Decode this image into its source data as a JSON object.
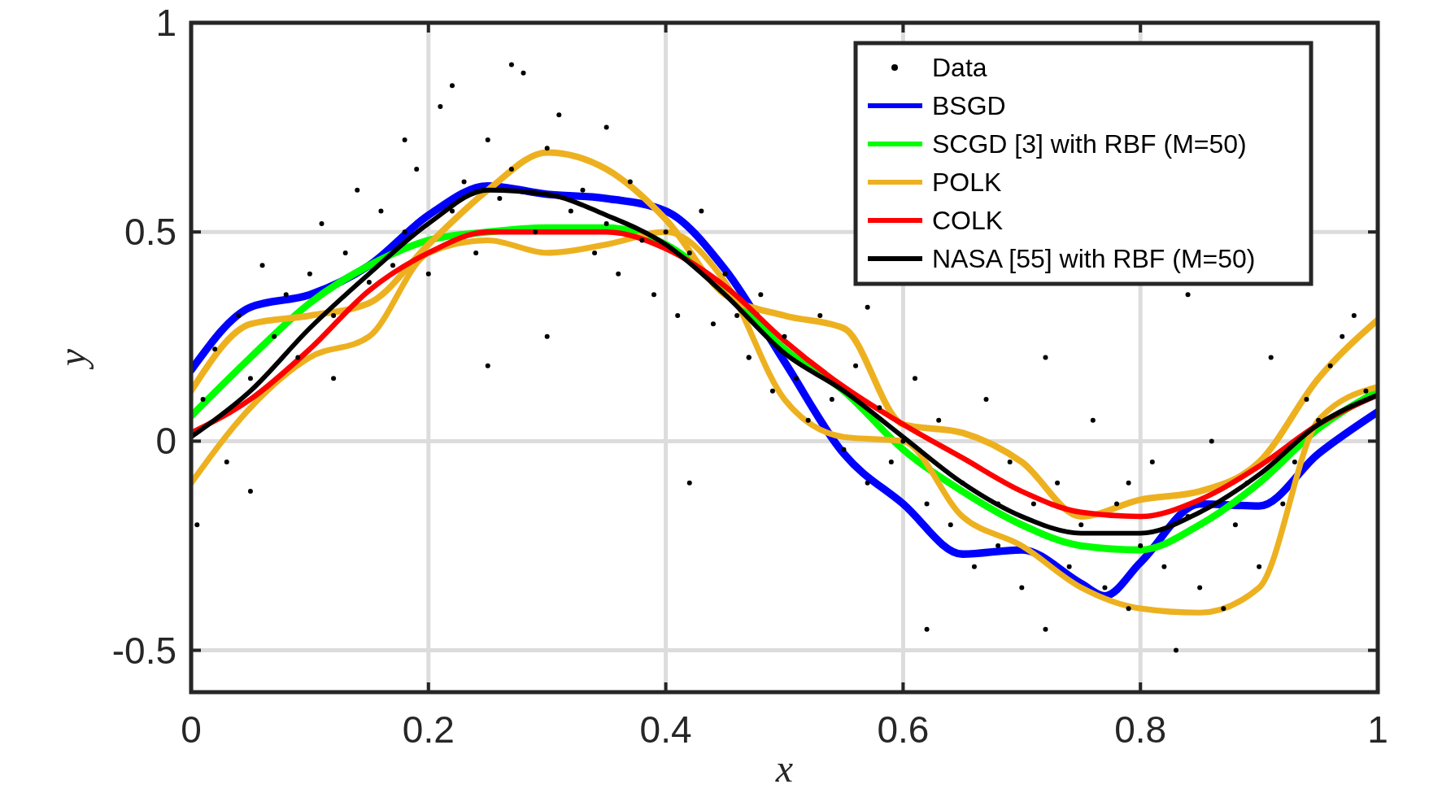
{
  "chart_data": {
    "type": "line",
    "xlabel": "x",
    "ylabel": "y",
    "xlim": [
      0,
      1
    ],
    "ylim": [
      -0.6,
      1
    ],
    "xticks": [
      0,
      0.2,
      0.4,
      0.6,
      0.8,
      1
    ],
    "yticks": [
      -0.5,
      0,
      0.5,
      1
    ],
    "grid": true,
    "legend": "top right",
    "series": [
      {
        "name": "Data",
        "type": "scatter",
        "color": "#000000",
        "x": [
          0.005,
          0.01,
          0.02,
          0.03,
          0.04,
          0.05,
          0.06,
          0.07,
          0.08,
          0.09,
          0.1,
          0.11,
          0.12,
          0.13,
          0.14,
          0.15,
          0.16,
          0.17,
          0.18,
          0.19,
          0.2,
          0.21,
          0.22,
          0.23,
          0.24,
          0.25,
          0.26,
          0.27,
          0.28,
          0.29,
          0.3,
          0.31,
          0.32,
          0.33,
          0.34,
          0.35,
          0.36,
          0.37,
          0.38,
          0.39,
          0.4,
          0.41,
          0.42,
          0.43,
          0.44,
          0.45,
          0.46,
          0.47,
          0.48,
          0.49,
          0.5,
          0.51,
          0.52,
          0.53,
          0.54,
          0.55,
          0.56,
          0.57,
          0.58,
          0.59,
          0.6,
          0.61,
          0.62,
          0.63,
          0.64,
          0.65,
          0.66,
          0.67,
          0.68,
          0.69,
          0.7,
          0.71,
          0.72,
          0.73,
          0.74,
          0.75,
          0.76,
          0.77,
          0.78,
          0.79,
          0.8,
          0.81,
          0.82,
          0.83,
          0.84,
          0.85,
          0.86,
          0.87,
          0.88,
          0.89,
          0.9,
          0.91,
          0.92,
          0.93,
          0.94,
          0.95,
          0.96,
          0.97,
          0.98,
          0.99,
          0.22,
          0.27,
          0.3,
          0.25,
          0.18,
          0.35,
          0.42,
          0.47,
          0.62,
          0.68,
          0.72,
          0.79,
          0.84,
          0.12,
          0.05,
          0.57
        ],
        "values": [
          -0.2,
          0.1,
          0.22,
          -0.05,
          0.3,
          0.15,
          0.42,
          0.25,
          0.35,
          0.2,
          0.4,
          0.52,
          0.3,
          0.45,
          0.6,
          0.38,
          0.55,
          0.42,
          0.5,
          0.65,
          0.4,
          0.8,
          0.55,
          0.62,
          0.45,
          0.72,
          0.58,
          0.65,
          0.88,
          0.5,
          0.7,
          0.78,
          0.55,
          0.6,
          0.45,
          0.52,
          0.4,
          0.62,
          0.48,
          0.35,
          0.5,
          0.3,
          0.45,
          0.55,
          0.28,
          0.4,
          0.3,
          0.2,
          0.35,
          0.12,
          0.25,
          0.15,
          0.05,
          0.3,
          0.1,
          -0.02,
          0.18,
          -0.1,
          0.08,
          -0.05,
          0.0,
          0.15,
          -0.15,
          0.05,
          -0.2,
          -0.1,
          -0.3,
          0.1,
          -0.25,
          -0.05,
          -0.35,
          -0.15,
          -0.45,
          -0.1,
          -0.3,
          -0.2,
          0.05,
          -0.35,
          -0.15,
          -0.4,
          -0.25,
          -0.05,
          -0.3,
          -0.5,
          -0.18,
          -0.35,
          0.0,
          -0.4,
          -0.2,
          -0.1,
          -0.3,
          0.2,
          -0.15,
          -0.05,
          0.1,
          0.05,
          0.18,
          0.25,
          0.3,
          0.12,
          0.85,
          0.9,
          0.25,
          0.18,
          0.72,
          0.75,
          -0.1,
          0.2,
          -0.45,
          -0.15,
          0.2,
          -0.1,
          0.35,
          0.15,
          -0.12,
          0.32
        ]
      },
      {
        "name": "BSGD",
        "color": "#0000ff",
        "x": [
          0,
          0.05,
          0.1,
          0.15,
          0.2,
          0.25,
          0.3,
          0.35,
          0.4,
          0.45,
          0.5,
          0.55,
          0.6,
          0.65,
          0.7,
          0.75,
          0.77,
          0.8,
          0.85,
          0.9,
          0.95,
          1
        ],
        "values": [
          0.17,
          0.32,
          0.35,
          0.42,
          0.54,
          0.61,
          0.59,
          0.58,
          0.55,
          0.41,
          0.19,
          -0.03,
          -0.15,
          -0.27,
          -0.26,
          -0.34,
          -0.37,
          -0.29,
          -0.15,
          -0.155,
          -0.03,
          0.07
        ]
      },
      {
        "name": "SCGD [3] with RBF (M=50)",
        "color": "#00ff00",
        "x": [
          0,
          0.05,
          0.1,
          0.15,
          0.2,
          0.25,
          0.3,
          0.35,
          0.4,
          0.45,
          0.5,
          0.55,
          0.6,
          0.65,
          0.7,
          0.75,
          0.8,
          0.85,
          0.9,
          0.95,
          1
        ],
        "values": [
          0.06,
          0.2,
          0.33,
          0.42,
          0.48,
          0.5,
          0.51,
          0.51,
          0.47,
          0.36,
          0.22,
          0.12,
          -0.02,
          -0.12,
          -0.2,
          -0.25,
          -0.26,
          -0.2,
          -0.1,
          0.03,
          0.12
        ]
      },
      {
        "name": "POLK",
        "color": "#edb120",
        "x": [
          0,
          0.05,
          0.1,
          0.15,
          0.2,
          0.25,
          0.3,
          0.35,
          0.4,
          0.45,
          0.5,
          0.55,
          0.6,
          0.65,
          0.7,
          0.75,
          0.8,
          0.85,
          0.9,
          0.95,
          1
        ],
        "values": [
          0.12,
          0.28,
          0.3,
          0.33,
          0.47,
          0.6,
          0.69,
          0.65,
          0.53,
          0.35,
          0.3,
          0.27,
          0.04,
          0.02,
          -0.05,
          -0.18,
          -0.14,
          -0.12,
          -0.05,
          0.15,
          0.29
        ]
      },
      {
        "color": "#edb120",
        "x": [
          0,
          0.05,
          0.1,
          0.15,
          0.2,
          0.25,
          0.3,
          0.35,
          0.4,
          0.45,
          0.5,
          0.55,
          0.6,
          0.65,
          0.7,
          0.75,
          0.8,
          0.85,
          0.9,
          0.95,
          1
        ],
        "values": [
          -0.1,
          0.08,
          0.2,
          0.25,
          0.45,
          0.48,
          0.45,
          0.47,
          0.5,
          0.38,
          0.1,
          0.01,
          0.0,
          -0.18,
          -0.25,
          -0.35,
          -0.4,
          -0.41,
          -0.35,
          0.05,
          0.13
        ]
      },
      {
        "name": "COLK",
        "color": "#ff0000",
        "x": [
          0,
          0.05,
          0.1,
          0.15,
          0.2,
          0.25,
          0.3,
          0.35,
          0.4,
          0.45,
          0.5,
          0.55,
          0.6,
          0.65,
          0.7,
          0.75,
          0.8,
          0.85,
          0.9,
          0.95,
          1
        ],
        "values": [
          0.02,
          0.1,
          0.22,
          0.36,
          0.45,
          0.5,
          0.5,
          0.5,
          0.46,
          0.37,
          0.24,
          0.13,
          0.04,
          -0.04,
          -0.12,
          -0.17,
          -0.18,
          -0.14,
          -0.06,
          0.04,
          0.11
        ]
      },
      {
        "name": "NASA [55] with RBF (M=50)",
        "color": "#000000",
        "x": [
          0,
          0.05,
          0.1,
          0.15,
          0.2,
          0.25,
          0.3,
          0.35,
          0.4,
          0.45,
          0.5,
          0.55,
          0.6,
          0.65,
          0.7,
          0.75,
          0.8,
          0.85,
          0.9,
          0.95,
          1
        ],
        "values": [
          0.01,
          0.12,
          0.27,
          0.4,
          0.52,
          0.6,
          0.59,
          0.54,
          0.47,
          0.35,
          0.21,
          0.12,
          0.01,
          -0.1,
          -0.18,
          -0.22,
          -0.22,
          -0.17,
          -0.08,
          0.04,
          0.11
        ]
      }
    ]
  }
}
